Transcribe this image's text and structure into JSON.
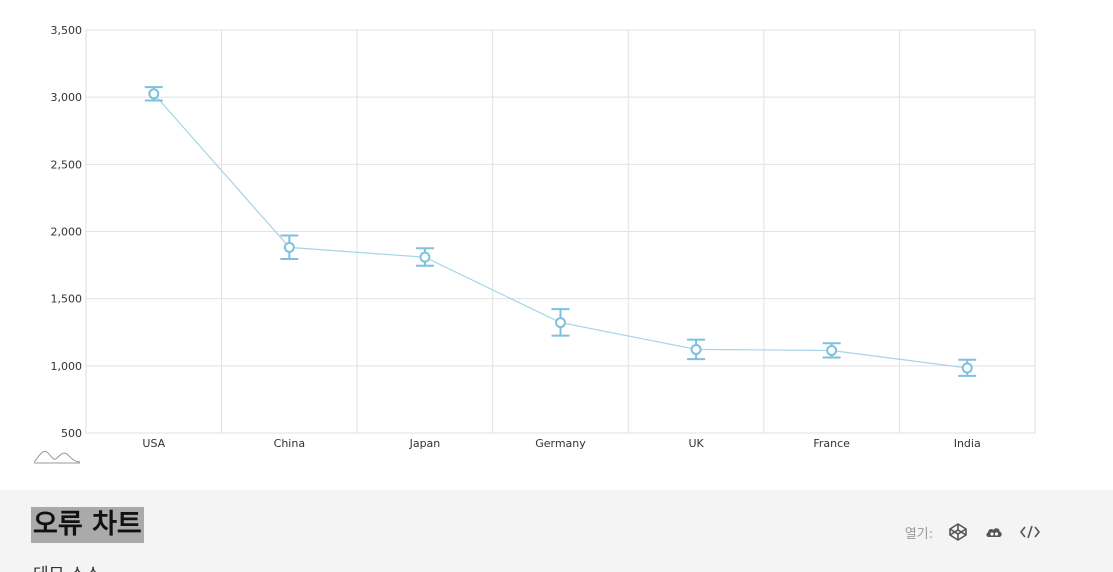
{
  "chart_data": {
    "type": "line",
    "categories": [
      "USA",
      "China",
      "Japan",
      "Germany",
      "UK",
      "France",
      "India"
    ],
    "series": [
      {
        "values": [
          3025,
          1882,
          1809,
          1322,
          1122,
          1114,
          984
        ],
        "error_low": [
          2975,
          1795,
          1745,
          1225,
          1050,
          1062,
          925
        ],
        "error_high": [
          3075,
          1970,
          1875,
          1422,
          1195,
          1168,
          1045
        ]
      }
    ],
    "yticks": [
      "500",
      "1,000",
      "1,500",
      "2,000",
      "2,500",
      "3,000",
      "3,500"
    ],
    "ylim": [
      500,
      3500
    ],
    "grid": true,
    "line_color": "#a8d4e8",
    "marker_color": "#7ec1dc"
  },
  "footer": {
    "title": "오류 차트",
    "subtitle": "데모 소스",
    "open_label": "열기:",
    "open_icons": [
      "codepen-icon",
      "cloud-icon",
      "code-icon"
    ]
  }
}
